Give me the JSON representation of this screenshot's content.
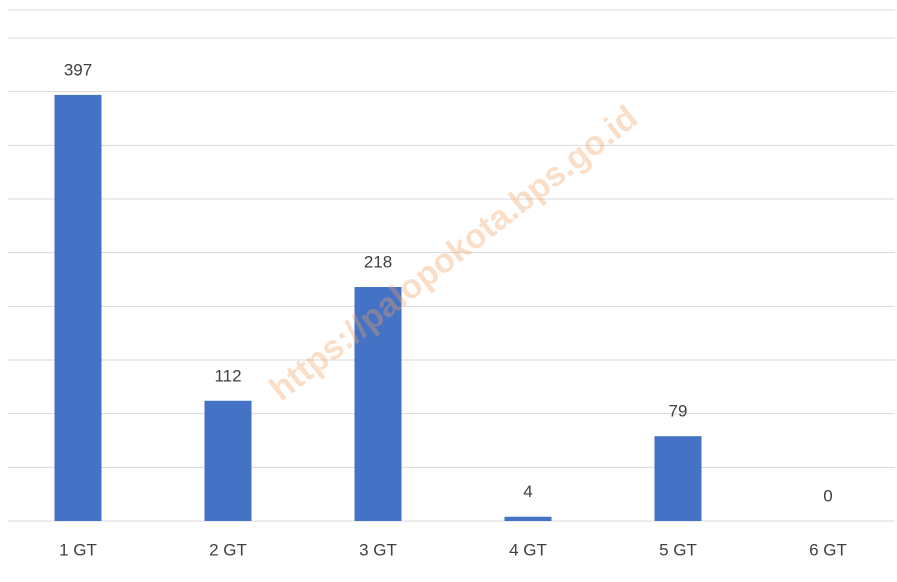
{
  "chart_data": {
    "type": "bar",
    "categories": [
      "1 GT",
      "2 GT",
      "3 GT",
      "4 GT",
      "5 GT",
      "6 GT"
    ],
    "values": [
      397,
      112,
      218,
      4,
      79,
      0
    ],
    "color": "#4472c4",
    "ylim": [
      0,
      450
    ],
    "yticks": [
      0,
      50,
      100,
      150,
      200,
      250,
      300,
      350,
      400,
      450
    ],
    "grid": true,
    "watermark": "https://palopokota.bps.go.id"
  }
}
